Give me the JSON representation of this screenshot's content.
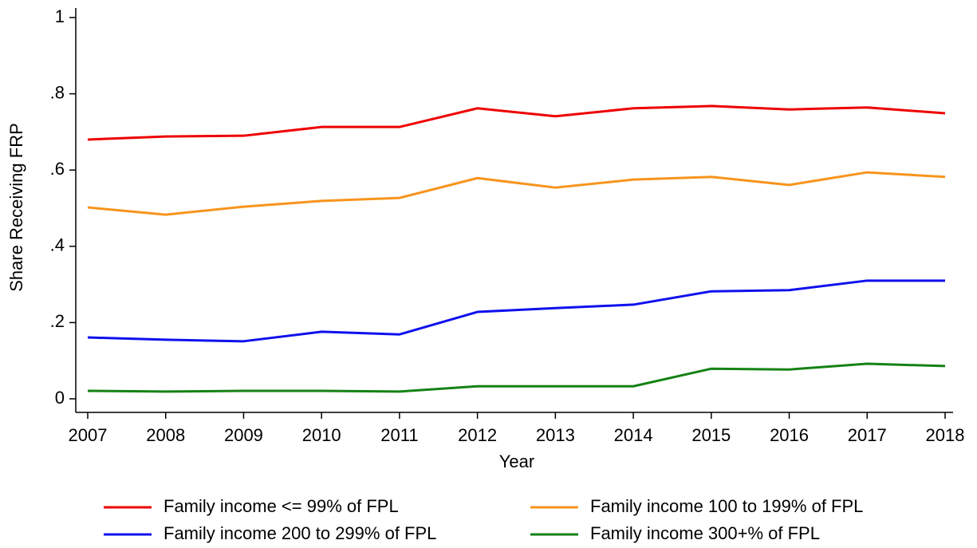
{
  "chart_data": {
    "type": "line",
    "x_label": "Year",
    "y_label": "Share Receiving FRP",
    "x": [
      2007,
      2008,
      2009,
      2010,
      2011,
      2012,
      2013,
      2014,
      2015,
      2016,
      2017,
      2018
    ],
    "xlim": [
      2007,
      2018
    ],
    "xticks": [
      2007,
      2008,
      2009,
      2010,
      2011,
      2012,
      2013,
      2014,
      2015,
      2016,
      2017,
      2018
    ],
    "ylim": [
      0,
      1
    ],
    "yticks": [
      0,
      {
        "value": 0.2,
        "label": ".2"
      },
      {
        "value": 0.4,
        "label": ".4"
      },
      {
        "value": 0.6,
        "label": ".6"
      },
      {
        "value": 0.8,
        "label": ".8"
      },
      1
    ],
    "grid": false,
    "legend": "bottom",
    "series": [
      {
        "name": "Family income <= 99% of FPL",
        "color": "#ee0000",
        "values": [
          0.68,
          0.688,
          0.69,
          0.713,
          0.713,
          0.762,
          0.741,
          0.762,
          0.768,
          0.759,
          0.764,
          0.749
        ]
      },
      {
        "name": "Family income 100 to 199% of FPL",
        "color": "#f7941d",
        "values": [
          0.502,
          0.483,
          0.504,
          0.519,
          0.527,
          0.579,
          0.554,
          0.575,
          0.582,
          0.561,
          0.594,
          0.582
        ]
      },
      {
        "name": "Family income 200 to 299% of FPL",
        "color": "#1010ee",
        "values": [
          0.161,
          0.155,
          0.151,
          0.176,
          0.169,
          0.228,
          0.238,
          0.247,
          0.282,
          0.285,
          0.31,
          0.31
        ]
      },
      {
        "name": "Family income 300+% of FPL",
        "color": "#148214",
        "values": [
          0.021,
          0.019,
          0.021,
          0.021,
          0.019,
          0.033,
          0.033,
          0.033,
          0.079,
          0.077,
          0.092,
          0.086
        ]
      }
    ]
  }
}
